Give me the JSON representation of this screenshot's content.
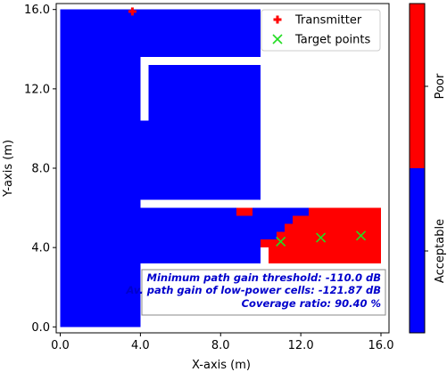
{
  "chart_data": {
    "type": "heatmap",
    "xlabel": "X-axis (m)",
    "ylabel": "Y-axis (m)",
    "xlim": [
      -0.2,
      16.4
    ],
    "ylim": [
      -0.3,
      16.3
    ],
    "x_ticks": [
      "0.0",
      "4.0",
      "8.0",
      "12.0",
      "16.0"
    ],
    "y_ticks": [
      "0.0",
      "4.0",
      "8.0",
      "12.0",
      "16.0"
    ],
    "categories": [
      "Acceptable",
      "Poor"
    ],
    "colors": {
      "Acceptable": "#0000ff",
      "Poor": "#ff0000",
      "background": "#ffffff"
    },
    "coverage_regions": [
      {
        "category": "Acceptable",
        "x": [
          0.0,
          10.0
        ],
        "y": [
          0.0,
          16.0
        ]
      },
      {
        "category": "Acceptable",
        "x": [
          0.0,
          4.0
        ],
        "y": [
          0.0,
          6.0
        ]
      },
      {
        "category": "Acceptable",
        "x": [
          4.0,
          10.0
        ],
        "y": [
          3.2,
          6.0
        ]
      },
      {
        "category": "Acceptable",
        "x": [
          10.0,
          12.4
        ],
        "y": [
          4.2,
          6.0
        ]
      },
      {
        "category": "Poor",
        "x": [
          12.4,
          16.0
        ],
        "y": [
          5.6,
          6.0
        ]
      },
      {
        "category": "Poor",
        "x": [
          11.6,
          16.0
        ],
        "y": [
          5.2,
          5.6
        ]
      },
      {
        "category": "Poor",
        "x": [
          11.2,
          16.0
        ],
        "y": [
          4.8,
          5.2
        ]
      },
      {
        "category": "Poor",
        "x": [
          10.8,
          16.0
        ],
        "y": [
          4.4,
          4.8
        ]
      },
      {
        "category": "Poor",
        "x": [
          10.4,
          16.0
        ],
        "y": [
          3.2,
          4.4
        ]
      },
      {
        "category": "Poor",
        "x": [
          10.0,
          10.4
        ],
        "y": [
          4.0,
          4.4
        ]
      },
      {
        "category": "Poor",
        "x": [
          8.8,
          9.6
        ],
        "y": [
          5.6,
          6.0
        ]
      }
    ],
    "obstacles": [
      {
        "x": [
          4.0,
          10.0
        ],
        "y": [
          6.0,
          6.4
        ]
      },
      {
        "x": [
          4.0,
          16.4
        ],
        "y": [
          0.0,
          3.2
        ]
      },
      {
        "x": [
          4.0,
          4.4
        ],
        "y": [
          10.4,
          13.6
        ]
      },
      {
        "x": [
          4.4,
          10.0
        ],
        "y": [
          13.2,
          13.6
        ]
      },
      {
        "x": [
          10.0,
          16.4
        ],
        "y": [
          6.4,
          16.3
        ]
      },
      {
        "x": [
          10.0,
          16.4
        ],
        "y": [
          6.0,
          6.4
        ]
      }
    ],
    "series": [
      {
        "name": "Transmitter",
        "marker": "plus",
        "color": "#ff0000",
        "points": [
          [
            3.6,
            15.9
          ]
        ]
      },
      {
        "name": "Target points",
        "marker": "x",
        "color": "#22dd22",
        "points": [
          [
            11.0,
            4.3
          ],
          [
            13.0,
            4.5
          ],
          [
            15.0,
            4.6
          ]
        ]
      }
    ],
    "legend": {
      "location": "top-right",
      "entries": [
        "Transmitter",
        "Target points"
      ]
    },
    "colorbar": {
      "labels": [
        "Acceptable",
        "Poor"
      ]
    },
    "annotations": [
      "Minimum path gain threshold: -110.0 dB",
      "Av. path gain of low-power cells: -121.87 dB",
      "Coverage ratio: 90.40 %"
    ],
    "grid": false
  }
}
